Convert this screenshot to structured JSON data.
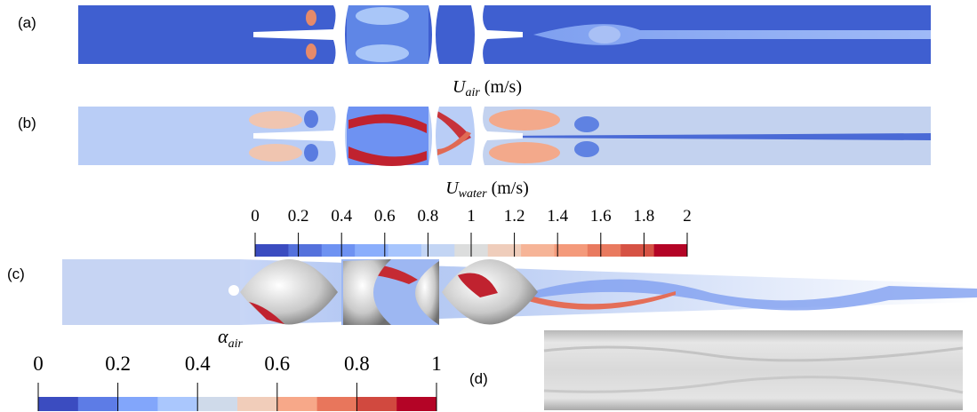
{
  "panels": [
    {
      "label": "(a)"
    },
    {
      "label": "(b)"
    },
    {
      "label": "(c)"
    },
    {
      "label": "(d)"
    }
  ],
  "field_labels": [
    {
      "symbol": "U",
      "subscript": "air",
      "unit": "(m/s)"
    },
    {
      "symbol": "U",
      "subscript": "water",
      "unit": "(m/s)"
    },
    {
      "symbol": "α",
      "subscript": "air"
    }
  ],
  "colorbars": [
    {
      "lim": [
        0,
        2
      ],
      "ticks": [
        0,
        0.2,
        0.4,
        0.6,
        0.8,
        1,
        1.2,
        1.4,
        1.6,
        1.8,
        2
      ],
      "colors": [
        "#3b4cc0",
        "#5471dc",
        "#6e92f2",
        "#8aaefc",
        "#a7c5fd",
        "#c3d5f4",
        "#dcdddd",
        "#efcdbb",
        "#f6b497",
        "#f49a7b",
        "#e97a5f",
        "#d65244",
        "#b40426"
      ]
    },
    {
      "lim": [
        0,
        1
      ],
      "ticks": [
        0,
        0.2,
        0.4,
        0.6,
        0.8,
        1
      ],
      "colors": [
        "#3b4cc0",
        "#5d7ce6",
        "#82a6fb",
        "#aac7fd",
        "#cfdaea",
        "#f1cdba",
        "#f7a889",
        "#e8765c",
        "#d1493f",
        "#b40426"
      ]
    }
  ]
}
